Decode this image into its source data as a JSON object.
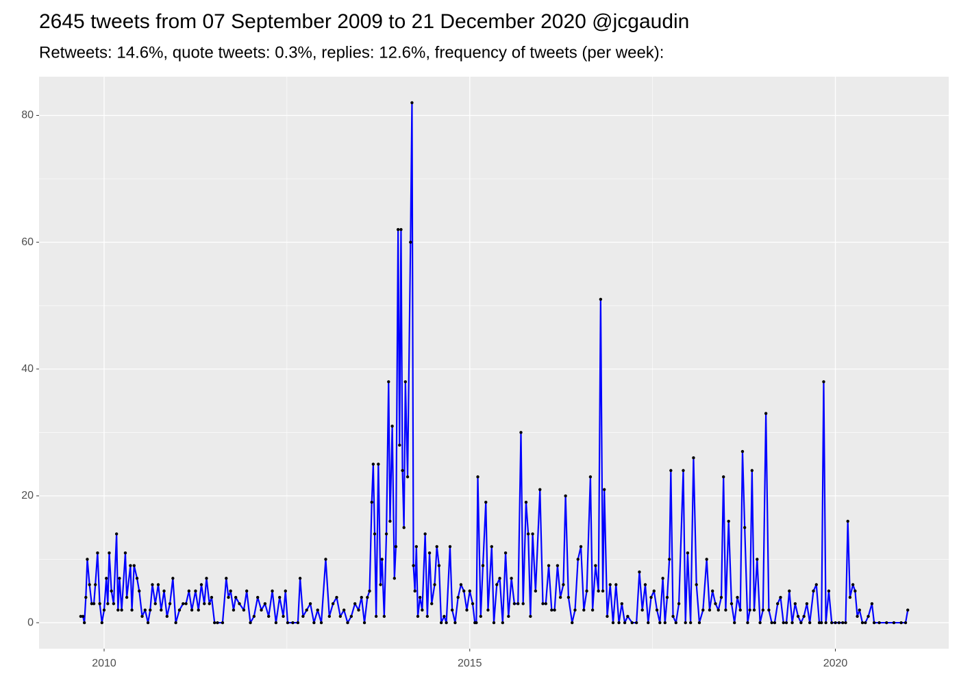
{
  "chart_data": {
    "type": "line",
    "title": "2645 tweets from 07 September 2009 to 21 December 2020 @jcgaudin",
    "subtitle": "Retweets: 14.6%, quote tweets: 0.3%, replies: 12.6%, frequency of tweets (per week):",
    "line_color": "#0000ff",
    "point_color": "#000000",
    "panel_color": "#ebebeb",
    "grid": true,
    "xlim": [
      2009.11,
      2021.55
    ],
    "ylim": [
      -4.1,
      86.1
    ],
    "xticks": [
      2010,
      2015,
      2020
    ],
    "yticks": [
      0,
      20,
      40,
      60,
      80
    ],
    "x": [
      2009.68,
      2009.71,
      2009.73,
      2009.75,
      2009.77,
      2009.8,
      2009.83,
      2009.86,
      2009.88,
      2009.91,
      2009.94,
      2009.97,
      2010.0,
      2010.03,
      2010.05,
      2010.07,
      2010.1,
      2010.13,
      2010.17,
      2010.19,
      2010.21,
      2010.24,
      2010.29,
      2010.31,
      2010.36,
      2010.38,
      2010.41,
      2010.45,
      2010.48,
      2010.52,
      2010.56,
      2010.6,
      2010.63,
      2010.66,
      2010.7,
      2010.74,
      2010.78,
      2010.82,
      2010.86,
      2010.9,
      2010.94,
      2010.98,
      2011.03,
      2011.08,
      2011.12,
      2011.16,
      2011.2,
      2011.25,
      2011.29,
      2011.33,
      2011.37,
      2011.4,
      2011.44,
      2011.47,
      2011.51,
      2011.55,
      2011.62,
      2011.67,
      2011.7,
      2011.73,
      2011.77,
      2011.8,
      2011.85,
      2011.91,
      2011.95,
      2012.0,
      2012.05,
      2012.1,
      2012.15,
      2012.2,
      2012.25,
      2012.3,
      2012.35,
      2012.4,
      2012.45,
      2012.48,
      2012.51,
      2012.58,
      2012.65,
      2012.68,
      2012.72,
      2012.77,
      2012.82,
      2012.87,
      2012.92,
      2012.97,
      2013.03,
      2013.08,
      2013.13,
      2013.18,
      2013.23,
      2013.28,
      2013.33,
      2013.38,
      2013.43,
      2013.48,
      2013.52,
      2013.56,
      2013.6,
      2013.63,
      2013.66,
      2013.68,
      2013.7,
      2013.72,
      2013.75,
      2013.78,
      2013.8,
      2013.83,
      2013.86,
      2013.89,
      2013.91,
      2013.94,
      2013.97,
      2013.99,
      2014.02,
      2014.04,
      2014.06,
      2014.08,
      2014.1,
      2014.12,
      2014.15,
      2014.19,
      2014.21,
      2014.23,
      2014.25,
      2014.27,
      2014.29,
      2014.32,
      2014.35,
      2014.39,
      2014.42,
      2014.45,
      2014.48,
      2014.52,
      2014.55,
      2014.58,
      2014.61,
      2014.65,
      2014.68,
      2014.73,
      2014.76,
      2014.8,
      2014.84,
      2014.88,
      2014.92,
      2014.96,
      2015.0,
      2015.04,
      2015.07,
      2015.09,
      2015.11,
      2015.15,
      2015.18,
      2015.22,
      2015.25,
      2015.3,
      2015.33,
      2015.37,
      2015.41,
      2015.45,
      2015.49,
      2015.53,
      2015.57,
      2015.61,
      2015.66,
      2015.7,
      2015.73,
      2015.77,
      2015.8,
      2015.83,
      2015.86,
      2015.9,
      2015.96,
      2016.0,
      2016.04,
      2016.08,
      2016.12,
      2016.16,
      2016.2,
      2016.24,
      2016.28,
      2016.31,
      2016.35,
      2016.4,
      2016.44,
      2016.48,
      2016.52,
      2016.56,
      2016.6,
      2016.65,
      2016.68,
      2016.72,
      2016.76,
      2016.79,
      2016.82,
      2016.84,
      2016.88,
      2016.92,
      2016.96,
      2017.0,
      2017.04,
      2017.08,
      2017.12,
      2017.16,
      2017.22,
      2017.28,
      2017.32,
      2017.36,
      2017.4,
      2017.44,
      2017.48,
      2017.52,
      2017.56,
      2017.6,
      2017.64,
      2017.67,
      2017.7,
      2017.73,
      2017.75,
      2017.78,
      2017.82,
      2017.86,
      2017.92,
      2017.95,
      2017.98,
      2018.02,
      2018.06,
      2018.1,
      2018.14,
      2018.19,
      2018.24,
      2018.28,
      2018.32,
      2018.36,
      2018.4,
      2018.44,
      2018.47,
      2018.5,
      2018.54,
      2018.58,
      2018.62,
      2018.66,
      2018.7,
      2018.73,
      2018.76,
      2018.8,
      2018.83,
      2018.86,
      2018.89,
      2018.93,
      2018.97,
      2019.01,
      2019.05,
      2019.09,
      2019.13,
      2019.17,
      2019.21,
      2019.25,
      2019.29,
      2019.33,
      2019.37,
      2019.41,
      2019.45,
      2019.49,
      2019.53,
      2019.57,
      2019.61,
      2019.65,
      2019.7,
      2019.74,
      2019.78,
      2019.81,
      2019.84,
      2019.87,
      2019.91,
      2019.95,
      2020.0,
      2020.05,
      2020.1,
      2020.14,
      2020.17,
      2020.2,
      2020.24,
      2020.27,
      2020.3,
      2020.33,
      2020.37,
      2020.41,
      2020.45,
      2020.5,
      2020.53,
      2020.6,
      2020.7,
      2020.8,
      2020.9,
      2020.96,
      2020.99
    ],
    "values": [
      1,
      1,
      0,
      4,
      10,
      6,
      3,
      3,
      6,
      11,
      3,
      0,
      2,
      7,
      3,
      11,
      5,
      3,
      14,
      2,
      7,
      2,
      11,
      4,
      9,
      2,
      9,
      7,
      5,
      1,
      2,
      0,
      2,
      6,
      3,
      6,
      2,
      5,
      1,
      3,
      7,
      0,
      2,
      3,
      3,
      5,
      2,
      5,
      2,
      6,
      3,
      7,
      3,
      4,
      0,
      0,
      0,
      7,
      4,
      5,
      2,
      4,
      3,
      2,
      5,
      0,
      1,
      4,
      2,
      3,
      1,
      5,
      0,
      4,
      1,
      5,
      0,
      0,
      0,
      7,
      1,
      2,
      3,
      0,
      2,
      0,
      10,
      1,
      3,
      4,
      1,
      2,
      0,
      1,
      3,
      2,
      4,
      0,
      4,
      5,
      19,
      25,
      14,
      1,
      25,
      6,
      10,
      1,
      14,
      38,
      16,
      31,
      7,
      12,
      62,
      28,
      62,
      24,
      15,
      38,
      23,
      60,
      82,
      9,
      5,
      12,
      1,
      4,
      2,
      14,
      1,
      11,
      3,
      6,
      12,
      9,
      0,
      1,
      0,
      12,
      2,
      0,
      4,
      6,
      5,
      2,
      5,
      3,
      0,
      0,
      23,
      1,
      9,
      19,
      2,
      12,
      0,
      6,
      7,
      0,
      11,
      1,
      7,
      3,
      3,
      30,
      3,
      19,
      14,
      1,
      14,
      5,
      21,
      3,
      3,
      9,
      2,
      2,
      9,
      4,
      6,
      20,
      4,
      0,
      2,
      10,
      12,
      2,
      5,
      23,
      2,
      9,
      5,
      51,
      5,
      21,
      1,
      6,
      0,
      6,
      0,
      3,
      0,
      1,
      0,
      0,
      8,
      2,
      6,
      0,
      4,
      5,
      2,
      0,
      7,
      0,
      4,
      10,
      24,
      1,
      0,
      3,
      24,
      0,
      11,
      0,
      26,
      6,
      0,
      2,
      10,
      2,
      5,
      3,
      2,
      4,
      23,
      2,
      16,
      3,
      0,
      4,
      2,
      27,
      15,
      0,
      2,
      24,
      2,
      10,
      0,
      2,
      33,
      2,
      0,
      0,
      3,
      4,
      0,
      0,
      5,
      0,
      3,
      1,
      0,
      1,
      3,
      0,
      5,
      6,
      0,
      0,
      38,
      0,
      5,
      0,
      0,
      0,
      0,
      0,
      16,
      4,
      6,
      5,
      1,
      2,
      0,
      0,
      1,
      3,
      0,
      0,
      0,
      0,
      0,
      0,
      2
    ]
  }
}
